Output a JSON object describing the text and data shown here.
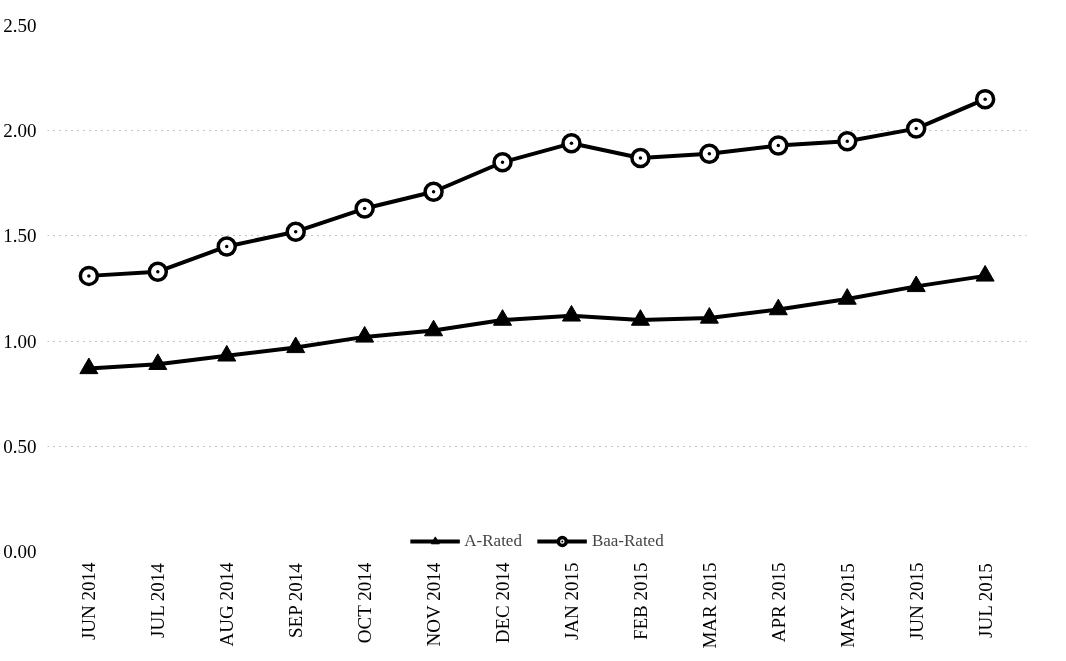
{
  "chart_data": {
    "type": "line",
    "categories": [
      "JUN 2014",
      "JUL 2014",
      "AUG 2014",
      "SEP 2014",
      "OCT 2014",
      "NOV 2014",
      "DEC 2014",
      "JAN 2015",
      "FEB 2015",
      "MAR 2015",
      "APR 2015",
      "MAY 2015",
      "JUN 2015",
      "JUL 2015"
    ],
    "series": [
      {
        "name": "A-Rated",
        "color": "#000000",
        "marker": "triangle",
        "values": [
          0.87,
          0.89,
          0.93,
          0.97,
          1.02,
          1.05,
          1.1,
          1.12,
          1.1,
          1.11,
          1.15,
          1.2,
          1.26,
          1.31
        ]
      },
      {
        "name": "Baa-Rated",
        "color": "#000000",
        "marker": "circle",
        "values": [
          1.31,
          1.33,
          1.45,
          1.52,
          1.63,
          1.71,
          1.85,
          1.94,
          1.87,
          1.89,
          1.93,
          1.95,
          2.01,
          2.15
        ]
      }
    ],
    "ylim": [
      0,
      2.5
    ],
    "yticks": [
      {
        "value": 0,
        "label": "0.00"
      },
      {
        "value": 0.5,
        "label": "0.50"
      },
      {
        "value": 1,
        "label": "1.00"
      },
      {
        "value": 1.5,
        "label": "1.50"
      },
      {
        "value": 2,
        "label": "2.00"
      },
      {
        "value": 2.5,
        "label": "2.50"
      }
    ],
    "grid": "y",
    "legend": "bottom",
    "line_style": "solid"
  }
}
